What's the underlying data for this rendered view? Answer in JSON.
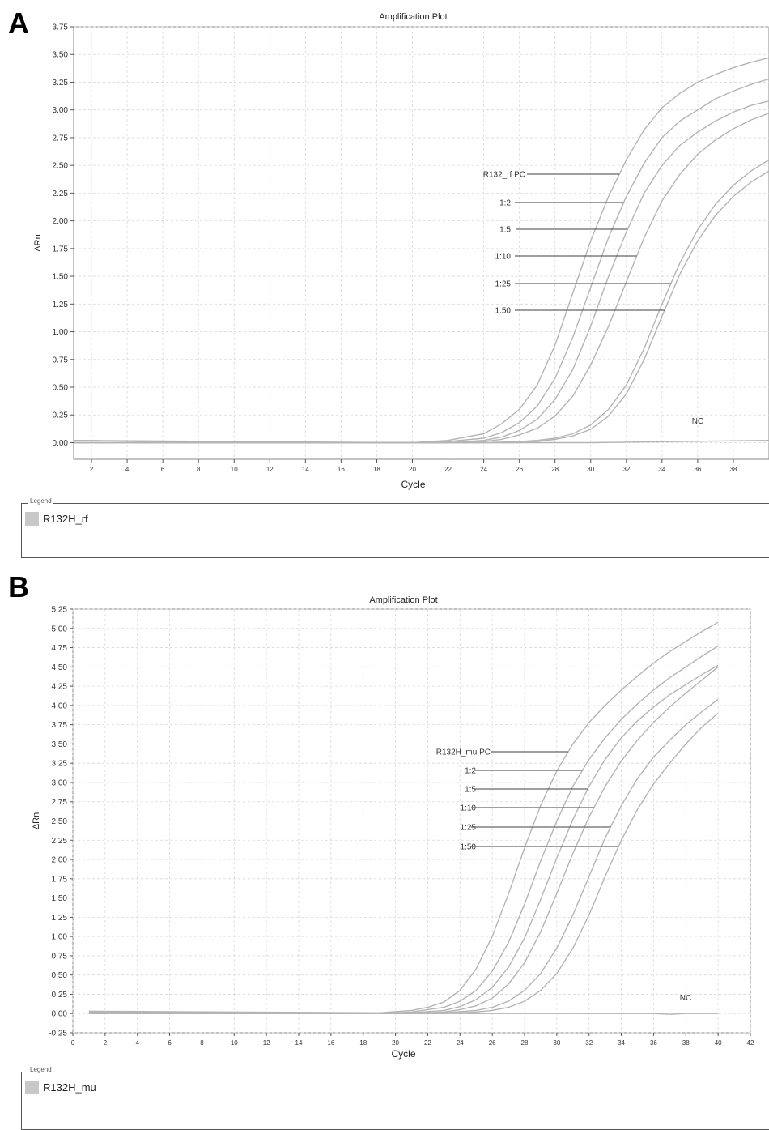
{
  "figure": {
    "panels": [
      {
        "letter": "A",
        "legend_title": "Legend",
        "legend_entry": "R132H_rf",
        "legend_color": "#c8c8c8"
      },
      {
        "letter": "B",
        "legend_title": "Legend",
        "legend_entry": "R132H_mu",
        "legend_color": "#c8c8c8"
      }
    ]
  },
  "chart_data": [
    {
      "type": "line",
      "title": "Amplification Plot",
      "xlabel": "Cycle",
      "ylabel": "ΔRn",
      "xlim": [
        1,
        40
      ],
      "ylim": [
        -0.15,
        3.75
      ],
      "xticks": [
        2,
        4,
        6,
        8,
        10,
        12,
        14,
        16,
        18,
        20,
        22,
        24,
        26,
        28,
        30,
        32,
        34,
        36,
        38
      ],
      "yticks": [
        0.0,
        0.25,
        0.5,
        0.75,
        1.0,
        1.25,
        1.5,
        1.75,
        2.0,
        2.25,
        2.5,
        2.75,
        3.0,
        3.25,
        3.5,
        3.75
      ],
      "grid": true,
      "line_color": "#b4b4b4",
      "series": [
        {
          "name": "R132_rf PC",
          "x": [
            1,
            20,
            22,
            24,
            25,
            26,
            27,
            28,
            29,
            30,
            31,
            32,
            33,
            34,
            35,
            36,
            37,
            38,
            39,
            40
          ],
          "y": [
            0.02,
            0.0,
            0.02,
            0.08,
            0.17,
            0.3,
            0.52,
            0.88,
            1.35,
            1.82,
            2.22,
            2.55,
            2.82,
            3.02,
            3.15,
            3.25,
            3.32,
            3.38,
            3.43,
            3.47
          ]
        },
        {
          "name": "1:2",
          "x": [
            1,
            20,
            22,
            24,
            25,
            26,
            27,
            28,
            29,
            30,
            31,
            32,
            33,
            34,
            35,
            36,
            37,
            38,
            39,
            40
          ],
          "y": [
            0.0,
            0.0,
            0.01,
            0.04,
            0.09,
            0.18,
            0.33,
            0.58,
            0.95,
            1.4,
            1.85,
            2.22,
            2.52,
            2.75,
            2.9,
            3.0,
            3.1,
            3.17,
            3.23,
            3.28
          ]
        },
        {
          "name": "1:5",
          "x": [
            1,
            20,
            22,
            24,
            25,
            26,
            27,
            28,
            29,
            30,
            31,
            32,
            33,
            34,
            35,
            36,
            37,
            38,
            39,
            40
          ],
          "y": [
            0.0,
            0.0,
            0.0,
            0.02,
            0.05,
            0.11,
            0.21,
            0.39,
            0.66,
            1.05,
            1.5,
            1.9,
            2.25,
            2.5,
            2.68,
            2.8,
            2.9,
            2.98,
            3.04,
            3.08
          ]
        },
        {
          "name": "1:10",
          "x": [
            1,
            20,
            22,
            24,
            25,
            26,
            27,
            28,
            29,
            30,
            31,
            32,
            33,
            34,
            35,
            36,
            37,
            38,
            39,
            40
          ],
          "y": [
            0.0,
            0.0,
            0.0,
            0.01,
            0.03,
            0.07,
            0.13,
            0.24,
            0.42,
            0.7,
            1.05,
            1.45,
            1.85,
            2.18,
            2.42,
            2.6,
            2.73,
            2.83,
            2.91,
            2.97
          ]
        },
        {
          "name": "1:25",
          "x": [
            1,
            20,
            22,
            24,
            26,
            27,
            28,
            29,
            30,
            31,
            32,
            33,
            34,
            35,
            36,
            37,
            38,
            39,
            40
          ],
          "y": [
            0.0,
            0.0,
            0.0,
            0.0,
            0.01,
            0.02,
            0.04,
            0.08,
            0.16,
            0.3,
            0.52,
            0.85,
            1.25,
            1.62,
            1.92,
            2.15,
            2.32,
            2.45,
            2.55
          ]
        },
        {
          "name": "1:50",
          "x": [
            1,
            20,
            22,
            24,
            26,
            27,
            28,
            29,
            30,
            31,
            32,
            33,
            34,
            35,
            36,
            37,
            38,
            39,
            40
          ],
          "y": [
            0.0,
            0.0,
            0.0,
            0.0,
            0.0,
            0.01,
            0.03,
            0.06,
            0.12,
            0.24,
            0.44,
            0.75,
            1.14,
            1.52,
            1.82,
            2.05,
            2.22,
            2.35,
            2.45
          ]
        },
        {
          "name": "NC",
          "x": [
            1,
            10,
            20,
            30,
            35,
            40
          ],
          "y": [
            0.02,
            0.0,
            0.0,
            0.0,
            0.01,
            0.02
          ]
        }
      ],
      "annotations": [
        {
          "text": "R132_rf PC",
          "series": "R132_rf PC"
        },
        {
          "text": "1:2",
          "series": "1:2"
        },
        {
          "text": "1:5",
          "series": "1:5"
        },
        {
          "text": "1:10",
          "series": "1:10"
        },
        {
          "text": "1:25",
          "series": "1:25"
        },
        {
          "text": "1:50",
          "series": "1:50"
        },
        {
          "text": "NC",
          "series": "NC"
        }
      ]
    },
    {
      "type": "line",
      "title": "Amplification Plot",
      "xlabel": "Cycle",
      "ylabel": "ΔRn",
      "xlim": [
        0,
        42
      ],
      "ylim": [
        -0.25,
        5.25
      ],
      "xticks": [
        0,
        2,
        4,
        6,
        8,
        10,
        12,
        14,
        16,
        18,
        20,
        22,
        24,
        26,
        28,
        30,
        32,
        34,
        36,
        38,
        40,
        42
      ],
      "yticks": [
        -0.25,
        0.0,
        0.25,
        0.5,
        0.75,
        1.0,
        1.25,
        1.5,
        1.75,
        2.0,
        2.25,
        2.5,
        2.75,
        3.0,
        3.25,
        3.5,
        3.75,
        4.0,
        4.25,
        4.5,
        4.75,
        5.0,
        5.25
      ],
      "grid": true,
      "line_color": "#b4b4b4",
      "series": [
        {
          "name": "R132H_mu PC",
          "x": [
            1,
            19,
            21,
            22,
            23,
            24,
            25,
            26,
            27,
            28,
            29,
            30,
            31,
            32,
            33,
            34,
            35,
            36,
            37,
            38,
            39,
            40
          ],
          "y": [
            0.03,
            0.01,
            0.04,
            0.08,
            0.15,
            0.3,
            0.58,
            1.0,
            1.55,
            2.15,
            2.7,
            3.15,
            3.5,
            3.78,
            4.0,
            4.2,
            4.38,
            4.55,
            4.7,
            4.83,
            4.96,
            5.08
          ]
        },
        {
          "name": "1:2",
          "x": [
            1,
            19,
            21,
            23,
            24,
            25,
            26,
            27,
            28,
            29,
            30,
            31,
            32,
            33,
            34,
            35,
            36,
            37,
            38,
            39,
            40
          ],
          "y": [
            0.02,
            0.0,
            0.02,
            0.08,
            0.16,
            0.3,
            0.55,
            0.92,
            1.42,
            1.98,
            2.5,
            2.95,
            3.3,
            3.58,
            3.82,
            4.02,
            4.2,
            4.36,
            4.5,
            4.64,
            4.77
          ]
        },
        {
          "name": "1:5",
          "x": [
            1,
            19,
            21,
            23,
            24,
            25,
            26,
            27,
            28,
            29,
            30,
            31,
            32,
            33,
            34,
            35,
            36,
            37,
            38,
            39,
            40
          ],
          "y": [
            0.0,
            0.0,
            0.01,
            0.04,
            0.09,
            0.18,
            0.34,
            0.6,
            0.98,
            1.48,
            2.02,
            2.52,
            2.95,
            3.3,
            3.58,
            3.8,
            3.98,
            4.14,
            4.27,
            4.4,
            4.52
          ]
        },
        {
          "name": "1:10",
          "x": [
            1,
            19,
            21,
            23,
            24,
            25,
            26,
            27,
            28,
            29,
            30,
            31,
            32,
            33,
            34,
            35,
            36,
            37,
            38,
            39,
            40
          ],
          "y": [
            0.0,
            0.0,
            0.0,
            0.02,
            0.05,
            0.1,
            0.2,
            0.38,
            0.66,
            1.06,
            1.56,
            2.08,
            2.55,
            2.95,
            3.28,
            3.55,
            3.78,
            3.98,
            4.16,
            4.33,
            4.5
          ]
        },
        {
          "name": "1:25",
          "x": [
            1,
            19,
            21,
            23,
            25,
            26,
            27,
            28,
            29,
            30,
            31,
            32,
            33,
            34,
            35,
            36,
            37,
            38,
            39,
            40
          ],
          "y": [
            0.0,
            0.0,
            0.0,
            0.01,
            0.04,
            0.08,
            0.16,
            0.3,
            0.52,
            0.85,
            1.28,
            1.78,
            2.28,
            2.7,
            3.05,
            3.33,
            3.55,
            3.75,
            3.92,
            4.08
          ]
        },
        {
          "name": "1:50",
          "x": [
            1,
            19,
            21,
            23,
            25,
            26,
            27,
            28,
            29,
            30,
            31,
            32,
            33,
            34,
            35,
            36,
            37,
            38,
            39,
            40
          ],
          "y": [
            0.0,
            0.0,
            0.0,
            0.0,
            0.02,
            0.04,
            0.08,
            0.16,
            0.3,
            0.52,
            0.85,
            1.28,
            1.78,
            2.25,
            2.65,
            2.98,
            3.25,
            3.5,
            3.72,
            3.9
          ]
        },
        {
          "name": "NC",
          "x": [
            1,
            10,
            20,
            30,
            36,
            37,
            38,
            40
          ],
          "y": [
            0.03,
            0.0,
            0.0,
            0.0,
            0.0,
            -0.01,
            0.0,
            0.0
          ]
        }
      ],
      "annotations": [
        {
          "text": "R132H_mu PC",
          "series": "R132H_mu PC"
        },
        {
          "text": "1:2",
          "series": "1:2"
        },
        {
          "text": "1:5",
          "series": "1:5"
        },
        {
          "text": "1:10",
          "series": "1:10"
        },
        {
          "text": "1:25",
          "series": "1:25"
        },
        {
          "text": "1:50",
          "series": "1:50"
        },
        {
          "text": "NC",
          "series": "NC"
        }
      ]
    }
  ]
}
